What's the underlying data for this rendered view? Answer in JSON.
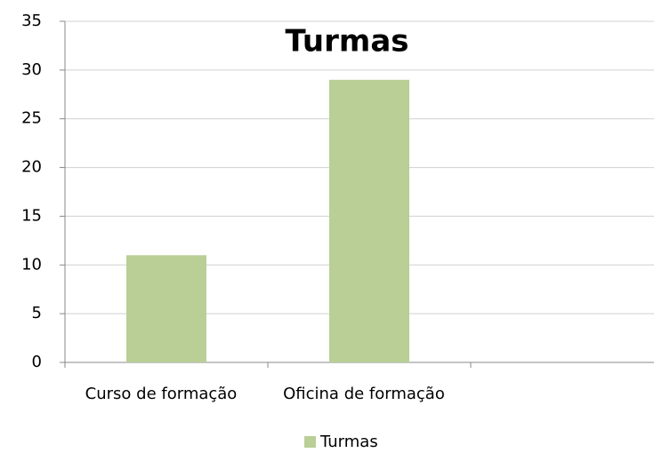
{
  "chart_data": {
    "type": "bar",
    "title": "Turmas",
    "categories": [
      "Curso de formação",
      "Oficina de formação",
      null
    ],
    "series": [
      {
        "name": "Turmas",
        "color": "#b9cf96",
        "values": [
          11,
          29,
          null
        ]
      }
    ],
    "ylim": [
      0,
      35
    ],
    "yticks": [
      0,
      5,
      10,
      15,
      20,
      25,
      30,
      35
    ],
    "grid": true,
    "legend": "bottom"
  }
}
